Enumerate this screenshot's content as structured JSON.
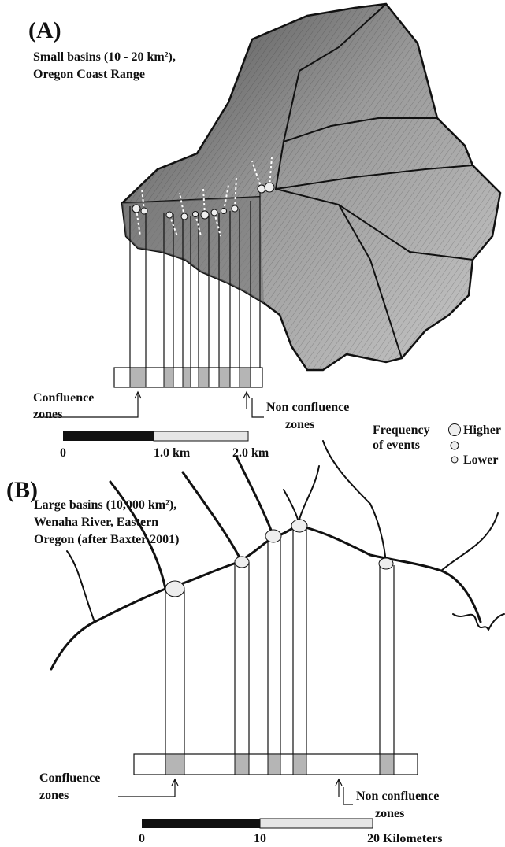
{
  "panel_a": {
    "label": "(A)",
    "caption": [
      "Small basins (10 - 20 km²),",
      "Oregon Coast Range"
    ],
    "confluence_label": [
      "Confluence",
      "zones"
    ],
    "non_confluence_label": [
      "Non confluence",
      "zones"
    ],
    "scale_labels": [
      "0",
      "1.0 km",
      "2.0 km"
    ],
    "legend": {
      "title": [
        "Frequency",
        "of events"
      ],
      "items": [
        "Higher",
        "Lower"
      ]
    }
  },
  "panel_b": {
    "label": "(B)",
    "caption": [
      "Large basins (10,000 km²),",
      "Wenaha River, Eastern",
      "Oregon (after Baxter 2001)"
    ],
    "confluence_label": [
      "Confluence",
      "zones"
    ],
    "non_confluence_label": [
      "Non confluence",
      "zones"
    ],
    "scale_labels": [
      "0",
      "10",
      "20 Kilometers"
    ]
  }
}
